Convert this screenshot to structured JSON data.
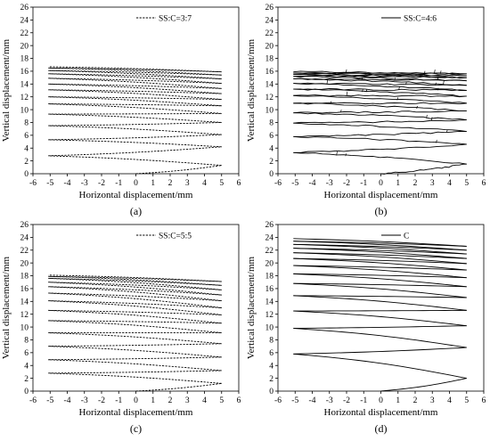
{
  "chart_data": [
    {
      "type": "line",
      "panel_label": "(a)",
      "xlabel": "Horizontal displacement/mm",
      "ylabel": "Vertical displacement/mm",
      "xlim": [
        -6,
        6
      ],
      "ylim": [
        0,
        26
      ],
      "xticks": [
        "-6",
        "-5",
        "-4",
        "-3",
        "-2",
        "-1",
        "0",
        "1",
        "2",
        "3",
        "4",
        "5",
        "6"
      ],
      "yticks": [
        "0",
        "2",
        "4",
        "6",
        "8",
        "10",
        "12",
        "14",
        "16",
        "18",
        "20",
        "22",
        "24",
        "26"
      ],
      "legend": "top-right",
      "series": [
        {
          "name": "SS:C=3:7",
          "line_style": "dashed",
          "start": [
            0,
            0
          ],
          "y_right": [
            1.3,
            4.2,
            6.1,
            8.0,
            9.4,
            10.6,
            11.6,
            12.5,
            13.3,
            14.1,
            14.8,
            15.4,
            15.9
          ],
          "y_left": [
            2.8,
            5.3,
            7.5,
            9.3,
            10.9,
            12.0,
            13.1,
            14.0,
            14.9,
            15.6,
            16.1,
            16.5,
            16.7
          ]
        }
      ]
    },
    {
      "type": "line",
      "panel_label": "(b)",
      "xlabel": "Horizontal displacement/mm",
      "ylabel": "Vertical displacement/mm",
      "xlim": [
        -6,
        6
      ],
      "ylim": [
        0,
        26
      ],
      "xticks": [
        "-6",
        "-5",
        "-4",
        "-3",
        "-2",
        "-1",
        "0",
        "1",
        "2",
        "3",
        "4",
        "5",
        "6"
      ],
      "yticks": [
        "0",
        "2",
        "4",
        "6",
        "8",
        "10",
        "12",
        "14",
        "16",
        "18",
        "20",
        "22",
        "24",
        "26"
      ],
      "legend": "top-right",
      "series": [
        {
          "name": "SS:C=4:6",
          "line_style": "solid-noisy",
          "start": [
            0,
            0
          ],
          "y_right": [
            1.5,
            4.6,
            6.6,
            8.4,
            9.8,
            11.0,
            12.1,
            13.0,
            13.8,
            14.5,
            15.0,
            15.3,
            15.6
          ],
          "y_left": [
            3.3,
            5.8,
            7.9,
            9.5,
            11.0,
            12.2,
            13.2,
            14.1,
            14.8,
            15.2,
            15.5,
            15.7,
            15.9
          ]
        }
      ]
    },
    {
      "type": "line",
      "panel_label": "(c)",
      "xlabel": "Horizontal displacement/mm",
      "ylabel": "Vertical displacement/mm",
      "xlim": [
        -6,
        6
      ],
      "ylim": [
        0,
        26
      ],
      "xticks": [
        "-6",
        "-5",
        "-4",
        "-3",
        "-2",
        "-1",
        "0",
        "1",
        "2",
        "3",
        "4",
        "5",
        "6"
      ],
      "yticks": [
        "0",
        "2",
        "4",
        "6",
        "8",
        "10",
        "12",
        "14",
        "16",
        "18",
        "20",
        "22",
        "24",
        "26"
      ],
      "legend": "top-right",
      "series": [
        {
          "name": "SS:C=5:5",
          "line_style": "dashed",
          "start": [
            0,
            0
          ],
          "y_right": [
            1.2,
            3.2,
            5.3,
            7.4,
            9.1,
            10.6,
            11.9,
            13.0,
            14.1,
            15.0,
            15.8,
            16.5,
            17.1
          ],
          "y_left": [
            2.8,
            4.9,
            7.0,
            9.1,
            11.0,
            12.6,
            14.1,
            15.3,
            16.3,
            17.0,
            17.6,
            17.9,
            18.1
          ]
        }
      ]
    },
    {
      "type": "line",
      "panel_label": "(d)",
      "xlabel": "Horizontal displacement/mm",
      "ylabel": "Vertical displacement/mm",
      "xlim": [
        -6,
        6
      ],
      "ylim": [
        0,
        26
      ],
      "xticks": [
        "-6",
        "-5",
        "-4",
        "-3",
        "-2",
        "-1",
        "0",
        "1",
        "2",
        "3",
        "4",
        "5",
        "6"
      ],
      "yticks": [
        "0",
        "2",
        "4",
        "6",
        "8",
        "10",
        "12",
        "14",
        "16",
        "18",
        "20",
        "22",
        "24",
        "26"
      ],
      "legend": "top-right",
      "series": [
        {
          "name": "C",
          "line_style": "solid",
          "start": [
            0,
            0
          ],
          "y_right": [
            2.0,
            6.8,
            10.2,
            12.6,
            14.6,
            16.3,
            17.7,
            18.9,
            19.9,
            20.7,
            21.4,
            22.0,
            22.6
          ],
          "y_left": [
            5.8,
            9.8,
            12.5,
            14.9,
            16.8,
            18.3,
            19.6,
            20.7,
            21.6,
            22.3,
            22.9,
            23.4,
            23.8
          ]
        }
      ]
    }
  ]
}
